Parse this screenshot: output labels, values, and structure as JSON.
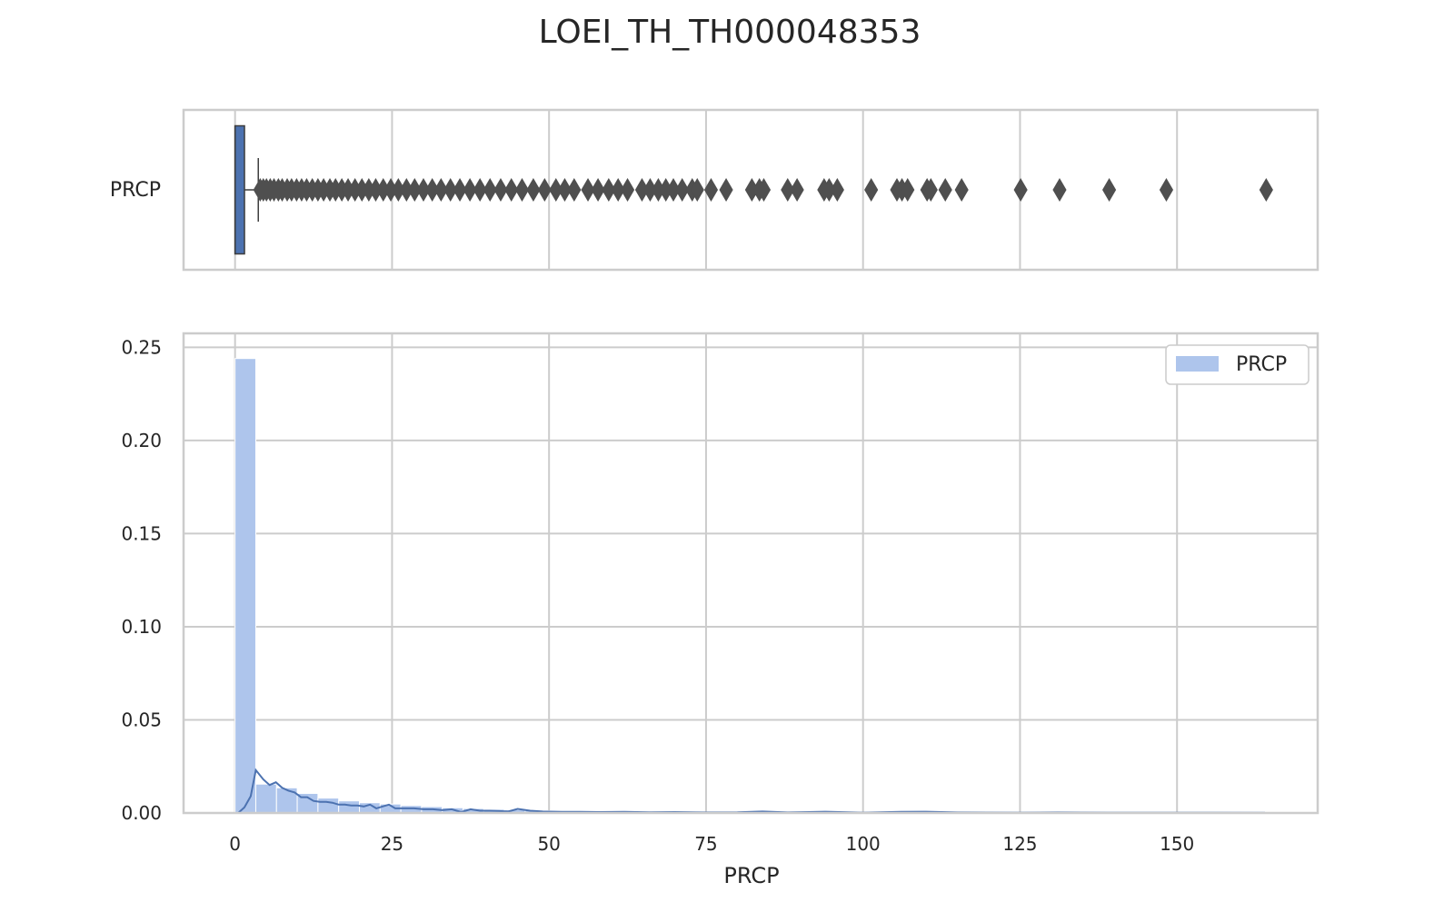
{
  "chart_data": {
    "title": "LOEI_TH_TH000048353",
    "colors": {
      "box_fill": "#4c72b0",
      "hist_fill": "#aec5ec",
      "kde_line": "#4c72b0",
      "outlier": "#4f4f4f",
      "grid": "#cccccc"
    },
    "boxplot": {
      "type": "box",
      "category_label": "PRCP",
      "orientation": "horizontal",
      "min": 0,
      "q1": 0,
      "median": 0,
      "q3": 1.5,
      "whisker_high": 3.7,
      "outliers": [
        4,
        4.5,
        5,
        5.6,
        6.2,
        6.9,
        7.5,
        8.3,
        9,
        9.8,
        10.6,
        11.4,
        12.3,
        13.2,
        14.1,
        15.1,
        16,
        17,
        18,
        19.1,
        20.2,
        21.3,
        22.4,
        23.6,
        24.8,
        26,
        27.3,
        28.6,
        30,
        31.4,
        32.8,
        34.3,
        35.8,
        37.4,
        39,
        40.6,
        42.3,
        44,
        45.7,
        47.5,
        49.3,
        51.1,
        52.5,
        54,
        56.2,
        57.8,
        59.5,
        61,
        62.5,
        64.8,
        66.1,
        67.4,
        68.6,
        69.8,
        71.2,
        72.8,
        73.6,
        75.8,
        78.2,
        82.3,
        83.5,
        84.2,
        88,
        89.5,
        93.8,
        94.6,
        95.9,
        101.3,
        105.4,
        106.2,
        107.1,
        110.2,
        110.8,
        113.1,
        115.7,
        125.1,
        131.3,
        139.2,
        148.3,
        164.2
      ]
    },
    "histogram": {
      "type": "bar",
      "bin_width": 3.3,
      "bin_start": 0,
      "values": [
        0.244,
        0.0155,
        0.0135,
        0.0105,
        0.008,
        0.0065,
        0.0055,
        0.0048,
        0.004,
        0.0034,
        0.0028,
        0.0024,
        0.002,
        0.0017,
        0.0014,
        0.0012,
        0.0011,
        0.0009,
        0.0008,
        0.0007,
        0.0006,
        0.0005,
        0.0005,
        0.0004,
        0.0004,
        0.0003,
        0.0003,
        0.0003,
        0.0002,
        0.0002,
        0.0002,
        0.0002,
        0.0001,
        0.0001,
        0.0001,
        0.0001,
        0.0001,
        0.0001,
        0.0001,
        0.0001,
        0.0001,
        0.0001,
        0.0001,
        0.0001,
        0.0001,
        0.0001,
        0.0001,
        0.0001,
        0.0001,
        0.0001
      ]
    },
    "kde": {
      "type": "line",
      "x": [
        0.5,
        1.5,
        2.5,
        3.3,
        4.5,
        5.5,
        6.5,
        7.5,
        8.5,
        9.5,
        10.5,
        11.5,
        12.5,
        13.5,
        14.5,
        15.5,
        16.5,
        17.5,
        18.5,
        19.5,
        20.5,
        21.5,
        22.5,
        23.5,
        24.5,
        25.5,
        27,
        28.5,
        30,
        31.5,
        33,
        34.5,
        36,
        37.5,
        39,
        40.5,
        42,
        43.5,
        45,
        47,
        49,
        52,
        55,
        58,
        62,
        66,
        70,
        75,
        80,
        84,
        88,
        94,
        100,
        106,
        110,
        115,
        125,
        131,
        139,
        148,
        155,
        164
      ],
      "y": [
        0,
        0.003,
        0.009,
        0.023,
        0.018,
        0.015,
        0.0165,
        0.0135,
        0.012,
        0.011,
        0.0085,
        0.0085,
        0.0065,
        0.006,
        0.006,
        0.0055,
        0.0045,
        0.0045,
        0.004,
        0.004,
        0.0035,
        0.0045,
        0.0025,
        0.0035,
        0.0045,
        0.0025,
        0.0025,
        0.0025,
        0.002,
        0.002,
        0.0015,
        0.002,
        0.0005,
        0.002,
        0.0012,
        0.0012,
        0.001,
        0.0008,
        0.0022,
        0.0012,
        0.0008,
        0.0006,
        0.0006,
        0.0005,
        0.0006,
        0.0004,
        0.0005,
        0.0003,
        0.0004,
        0.0008,
        0.0003,
        0.0007,
        0.0002,
        0.0006,
        0.0007,
        0.0003,
        0.0002,
        0.0003,
        0.0002,
        0.0002,
        0.0002,
        0.0001
      ]
    },
    "x_axis": {
      "label": "PRCP",
      "range": [
        -8.2,
        172.4
      ],
      "ticks": [
        0,
        25,
        50,
        75,
        100,
        125,
        150
      ]
    },
    "y_axis": {
      "label": "",
      "range": [
        0,
        0.2575
      ],
      "ticks": [
        0,
        0.05,
        0.1,
        0.15,
        0.2,
        0.25
      ],
      "tick_labels": [
        "0.00",
        "0.05",
        "0.10",
        "0.15",
        "0.20",
        "0.25"
      ]
    },
    "legend": {
      "entries": [
        "PRCP"
      ],
      "position": "top-right"
    },
    "grid": true
  }
}
